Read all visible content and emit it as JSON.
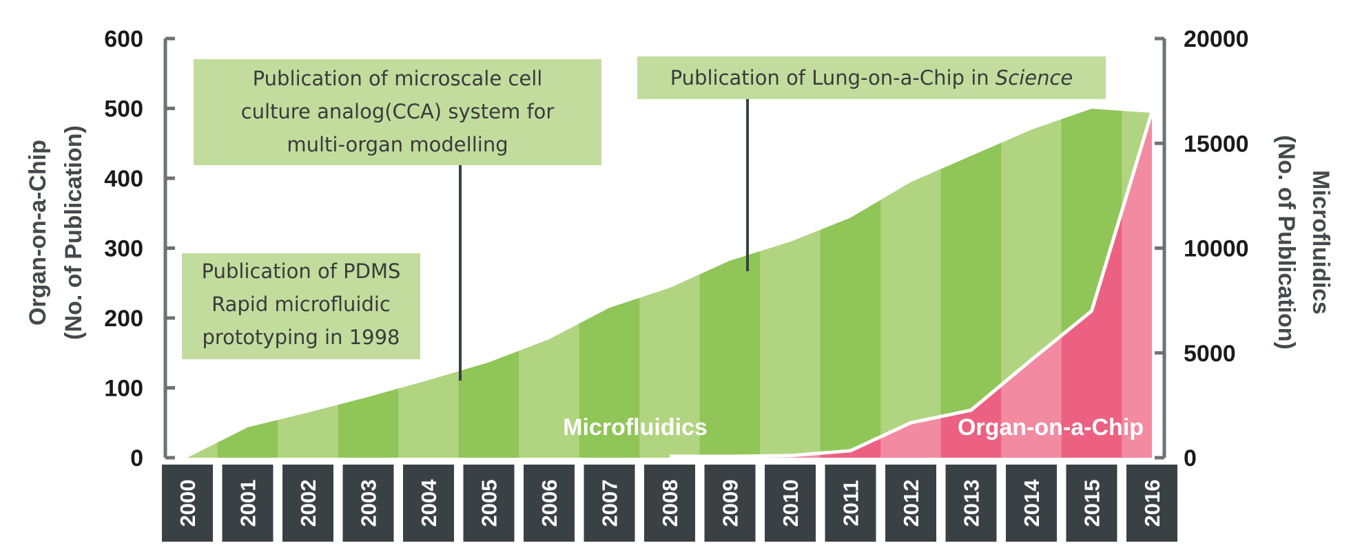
{
  "chart_data": {
    "type": "area",
    "categories": [
      "2000",
      "2001",
      "2002",
      "2003",
      "2004",
      "2005",
      "2006",
      "2007",
      "2008",
      "2009",
      "2010",
      "2011",
      "2012",
      "2013",
      "2014",
      "2015",
      "2016"
    ],
    "y_left": {
      "label_line1": "Organ-on-a-Chip",
      "label_line2": "(No. of Publication)",
      "ylim": [
        0,
        600
      ],
      "ticks": [
        "0",
        "100",
        "200",
        "300",
        "400",
        "500",
        "600"
      ]
    },
    "y_right": {
      "label_line1": "Microfluidics",
      "label_line2": "(No. of Publication)",
      "ylim": [
        0,
        20000
      ],
      "ticks": [
        "0",
        "5000",
        "10000",
        "15000",
        "20000"
      ]
    },
    "series": [
      {
        "name": "Microfluidics",
        "axis": "right",
        "color": "#8cc152",
        "values": [
          0,
          1450,
          2150,
          2900,
          3700,
          4550,
          5650,
          7150,
          8100,
          9400,
          10300,
          11450,
          13150,
          14400,
          15650,
          16650,
          16450
        ]
      },
      {
        "name": "Organ-on-a-Chip",
        "axis": "left",
        "color": "#ee6e8a",
        "values": [
          0,
          0,
          0,
          0,
          0,
          0,
          0,
          0,
          0,
          1,
          3,
          10,
          50,
          68,
          140,
          210,
          495
        ]
      }
    ],
    "annotations": [
      {
        "lines": [
          "Publication of PDMS",
          "Rapid microfluidic",
          "prototyping in 1998"
        ]
      },
      {
        "lines": [
          "Publication of microscale cell",
          "culture analog(CCA) system for",
          "multi-organ modelling"
        ]
      },
      {
        "lines_plain": "Publication of Lung-on-a-Chip in ",
        "lines_italic": "Science"
      }
    ],
    "grid": false
  }
}
